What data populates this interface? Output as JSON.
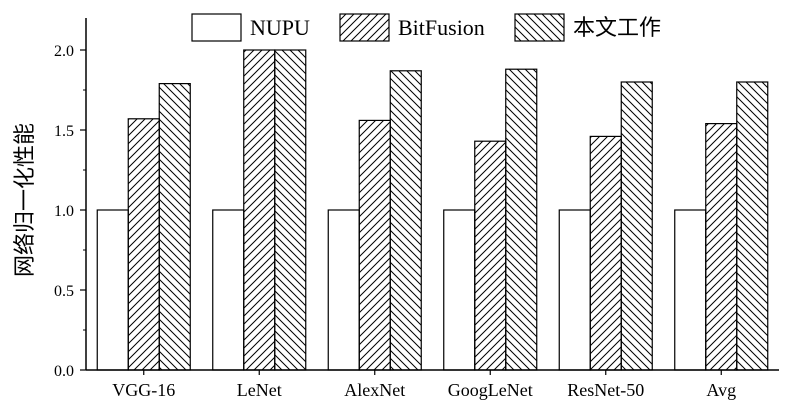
{
  "chart_data": {
    "type": "bar",
    "title": "",
    "xlabel": "",
    "ylabel": "网络归一化性能",
    "categories": [
      "VGG-16",
      "LeNet",
      "AlexNet",
      "GoogLeNet",
      "ResNet-50",
      "Avg"
    ],
    "series": [
      {
        "name": "NUPU",
        "pattern": "none",
        "values": [
          1.0,
          1.0,
          1.0,
          1.0,
          1.0,
          1.0
        ]
      },
      {
        "name": "BitFusion",
        "pattern": "diagonal-forward",
        "values": [
          1.57,
          2.0,
          1.56,
          1.43,
          1.46,
          1.54
        ]
      },
      {
        "name": "本文工作",
        "pattern": "diagonal-backward",
        "values": [
          1.79,
          2.0,
          1.87,
          1.88,
          1.8,
          1.8
        ]
      }
    ],
    "ylim": [
      0,
      2.2
    ],
    "yticks": [
      "0.0",
      "0.5",
      "1.0",
      "1.5",
      "2.0"
    ],
    "ytick_values": [
      0,
      0.5,
      1.0,
      1.5,
      2.0
    ],
    "legend_position": "top",
    "grid": false,
    "colors": {
      "bar_fill": "#ffffff",
      "bar_stroke": "#000000",
      "hatch": "#000000"
    }
  }
}
